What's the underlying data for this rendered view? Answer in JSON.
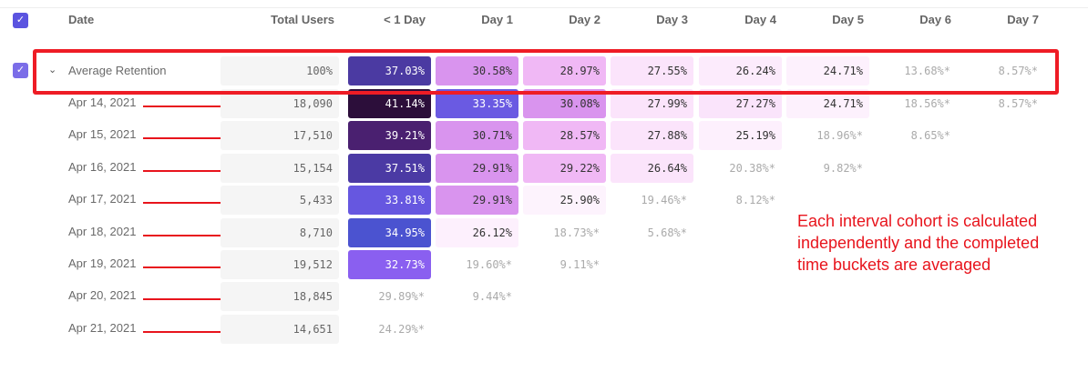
{
  "header": {
    "date": "Date",
    "total_users": "Total Users",
    "buckets": [
      "< 1 Day",
      "Day 1",
      "Day 2",
      "Day 3",
      "Day 4",
      "Day 5",
      "Day 6",
      "Day 7"
    ]
  },
  "average_row": {
    "label": "Average Retention",
    "total": "100%",
    "cells": [
      {
        "v": "37.03%",
        "bg": "#4b3aa2",
        "fg": "#ffffff"
      },
      {
        "v": "30.58%",
        "bg": "#d994ee",
        "fg": "#333333"
      },
      {
        "v": "28.97%",
        "bg": "#f0b8f5",
        "fg": "#333333"
      },
      {
        "v": "27.55%",
        "bg": "#fbe4fb",
        "fg": "#333333"
      },
      {
        "v": "26.24%",
        "bg": "#fcebfc",
        "fg": "#333333"
      },
      {
        "v": "24.71%",
        "bg": "#fdf1fd",
        "fg": "#333333"
      },
      {
        "v": "13.68%*",
        "bg": "",
        "fg": "#aaaaaa"
      },
      {
        "v": "8.57%*",
        "bg": "",
        "fg": "#aaaaaa"
      }
    ]
  },
  "rows": [
    {
      "date": "Apr 14, 2021",
      "total": "18,090",
      "cells": [
        {
          "v": "41.14%",
          "bg": "#2c0e3a",
          "fg": "#ffffff"
        },
        {
          "v": "33.35%",
          "bg": "#6a5ae2",
          "fg": "#ffffff"
        },
        {
          "v": "30.08%",
          "bg": "#d994ee",
          "fg": "#333333"
        },
        {
          "v": "27.99%",
          "bg": "#fbe4fb",
          "fg": "#333333"
        },
        {
          "v": "27.27%",
          "bg": "#fae4fb",
          "fg": "#333333"
        },
        {
          "v": "24.71%",
          "bg": "#fdf1fd",
          "fg": "#333333"
        },
        {
          "v": "18.56%*",
          "bg": "",
          "fg": "#aaaaaa"
        },
        {
          "v": "8.57%*",
          "bg": "",
          "fg": "#aaaaaa"
        }
      ]
    },
    {
      "date": "Apr 15, 2021",
      "total": "17,510",
      "cells": [
        {
          "v": "39.21%",
          "bg": "#4a2070",
          "fg": "#ffffff"
        },
        {
          "v": "30.71%",
          "bg": "#d994ee",
          "fg": "#333333"
        },
        {
          "v": "28.57%",
          "bg": "#f0b8f5",
          "fg": "#333333"
        },
        {
          "v": "27.88%",
          "bg": "#fbe4fb",
          "fg": "#333333"
        },
        {
          "v": "25.19%",
          "bg": "#fdf0fd",
          "fg": "#333333"
        },
        {
          "v": "18.96%*",
          "bg": "",
          "fg": "#aaaaaa"
        },
        {
          "v": "8.65%*",
          "bg": "",
          "fg": "#aaaaaa"
        }
      ]
    },
    {
      "date": "Apr 16, 2021",
      "total": "15,154",
      "cells": [
        {
          "v": "37.51%",
          "bg": "#4b3aa4",
          "fg": "#ffffff"
        },
        {
          "v": "29.91%",
          "bg": "#d994ee",
          "fg": "#333333"
        },
        {
          "v": "29.22%",
          "bg": "#f0b8f5",
          "fg": "#333333"
        },
        {
          "v": "26.64%",
          "bg": "#fbe4fb",
          "fg": "#333333"
        },
        {
          "v": "20.38%*",
          "bg": "",
          "fg": "#aaaaaa"
        },
        {
          "v": "9.82%*",
          "bg": "",
          "fg": "#aaaaaa"
        }
      ]
    },
    {
      "date": "Apr 17, 2021",
      "total": "5,433",
      "cells": [
        {
          "v": "33.81%",
          "bg": "#6657e0",
          "fg": "#ffffff"
        },
        {
          "v": "29.91%",
          "bg": "#d994ee",
          "fg": "#333333"
        },
        {
          "v": "25.90%",
          "bg": "#fdf3fd",
          "fg": "#333333"
        },
        {
          "v": "19.46%*",
          "bg": "",
          "fg": "#aaaaaa"
        },
        {
          "v": "8.12%*",
          "bg": "",
          "fg": "#aaaaaa"
        }
      ]
    },
    {
      "date": "Apr 18, 2021",
      "total": "8,710",
      "cells": [
        {
          "v": "34.95%",
          "bg": "#4b53d0",
          "fg": "#ffffff"
        },
        {
          "v": "26.12%",
          "bg": "#fdf0fd",
          "fg": "#333333"
        },
        {
          "v": "18.73%*",
          "bg": "",
          "fg": "#aaaaaa"
        },
        {
          "v": "5.68%*",
          "bg": "",
          "fg": "#aaaaaa"
        }
      ]
    },
    {
      "date": "Apr 19, 2021",
      "total": "19,512",
      "cells": [
        {
          "v": "32.73%",
          "bg": "#8a5ff0",
          "fg": "#ffffff"
        },
        {
          "v": "19.60%*",
          "bg": "",
          "fg": "#aaaaaa"
        },
        {
          "v": "9.11%*",
          "bg": "",
          "fg": "#aaaaaa"
        }
      ]
    },
    {
      "date": "Apr 20, 2021",
      "total": "18,845",
      "cells": [
        {
          "v": "29.89%*",
          "bg": "",
          "fg": "#aaaaaa"
        },
        {
          "v": "9.44%*",
          "bg": "",
          "fg": "#aaaaaa"
        }
      ]
    },
    {
      "date": "Apr 21, 2021",
      "total": "14,651",
      "cells": [
        {
          "v": "24.29%*",
          "bg": "",
          "fg": "#aaaaaa"
        }
      ]
    }
  ],
  "annotation": "Each interval cohort is calculated independently and the completed time buckets are averaged",
  "colors": {
    "accent": "#5b54e0",
    "annotation_red": "#e8141c"
  }
}
